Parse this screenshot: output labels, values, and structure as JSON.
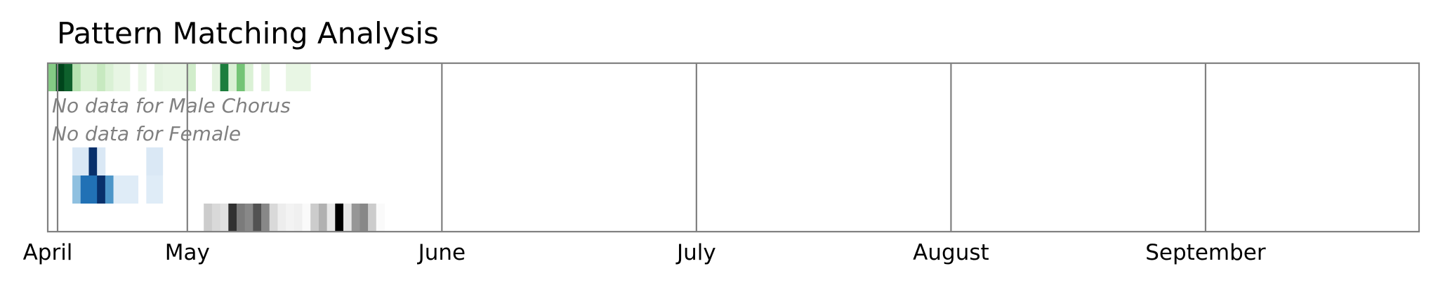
{
  "chart_data": {
    "type": "heatmap",
    "title": "Pattern Matching Analysis",
    "xlabel": "",
    "ylabel": "",
    "x_axis": {
      "type": "date",
      "range": [
        "2023-03-31",
        "2023-09-14"
      ],
      "ticks": [
        {
          "date": "2023-03-31",
          "label": "April"
        },
        {
          "date": "2023-04-17",
          "label": "May"
        },
        {
          "date": "2023-05-18",
          "label": "June"
        },
        {
          "date": "2023-06-18",
          "label": "July"
        },
        {
          "date": "2023-07-19",
          "label": "August"
        },
        {
          "date": "2023-08-19",
          "label": "September"
        }
      ]
    },
    "grid": "vertical lines at month ticks",
    "rows": [
      {
        "name": "",
        "colormap": "Greens",
        "points": [
          {
            "date": "2023-03-31",
            "value": 0.45
          },
          {
            "date": "2023-04-01",
            "value": 1.0
          },
          {
            "date": "2023-04-02",
            "value": 0.9
          },
          {
            "date": "2023-04-03",
            "value": 0.3
          },
          {
            "date": "2023-04-04",
            "value": 0.15
          },
          {
            "date": "2023-04-05",
            "value": 0.15
          },
          {
            "date": "2023-04-06",
            "value": 0.25
          },
          {
            "date": "2023-04-07",
            "value": 0.15
          },
          {
            "date": "2023-04-08",
            "value": 0.08
          },
          {
            "date": "2023-04-09",
            "value": 0.08
          },
          {
            "date": "2023-04-11",
            "value": 0.06
          },
          {
            "date": "2023-04-13",
            "value": 0.1
          },
          {
            "date": "2023-04-14",
            "value": 0.08
          },
          {
            "date": "2023-04-15",
            "value": 0.08
          },
          {
            "date": "2023-04-16",
            "value": 0.08
          },
          {
            "date": "2023-04-17",
            "value": 0.2
          },
          {
            "date": "2023-04-20",
            "value": 0.1
          },
          {
            "date": "2023-04-21",
            "value": 0.8
          },
          {
            "date": "2023-04-22",
            "value": 0.15
          },
          {
            "date": "2023-04-23",
            "value": 0.5
          },
          {
            "date": "2023-04-24",
            "value": 0.15
          },
          {
            "date": "2023-04-26",
            "value": 0.1
          },
          {
            "date": "2023-04-29",
            "value": 0.08
          },
          {
            "date": "2023-04-30",
            "value": 0.08
          },
          {
            "date": "2023-05-01",
            "value": 0.08
          }
        ]
      },
      {
        "name": "Male Chorus",
        "colormap": "Blues",
        "points": [],
        "annotation": "No data for Male Chorus"
      },
      {
        "name": "Female",
        "colormap": "Blues",
        "points": [],
        "annotation": "No data for Female"
      },
      {
        "name": "",
        "colormap": "Blues",
        "points": [
          {
            "date": "2023-04-03",
            "value": 0.15
          },
          {
            "date": "2023-04-04",
            "value": 0.15
          },
          {
            "date": "2023-04-05",
            "value": 1.0
          },
          {
            "date": "2023-04-06",
            "value": 0.15
          },
          {
            "date": "2023-04-12",
            "value": 0.15
          },
          {
            "date": "2023-04-13",
            "value": 0.15
          }
        ]
      },
      {
        "name": "",
        "colormap": "Blues",
        "points": [
          {
            "date": "2023-04-03",
            "value": 0.4
          },
          {
            "date": "2023-04-04",
            "value": 0.75
          },
          {
            "date": "2023-04-05",
            "value": 0.75
          },
          {
            "date": "2023-04-06",
            "value": 1.0
          },
          {
            "date": "2023-04-07",
            "value": 0.6
          },
          {
            "date": "2023-04-08",
            "value": 0.12
          },
          {
            "date": "2023-04-09",
            "value": 0.12
          },
          {
            "date": "2023-04-10",
            "value": 0.12
          },
          {
            "date": "2023-04-12",
            "value": 0.12
          },
          {
            "date": "2023-04-13",
            "value": 0.12
          }
        ]
      },
      {
        "name": "",
        "colormap": "Greys",
        "points": [
          {
            "date": "2023-04-19",
            "value": 0.3
          },
          {
            "date": "2023-04-20",
            "value": 0.25
          },
          {
            "date": "2023-04-21",
            "value": 0.2
          },
          {
            "date": "2023-04-22",
            "value": 0.85
          },
          {
            "date": "2023-04-23",
            "value": 0.6
          },
          {
            "date": "2023-04-24",
            "value": 0.55
          },
          {
            "date": "2023-04-25",
            "value": 0.75
          },
          {
            "date": "2023-04-26",
            "value": 0.55
          },
          {
            "date": "2023-04-27",
            "value": 0.25
          },
          {
            "date": "2023-04-28",
            "value": 0.12
          },
          {
            "date": "2023-04-29",
            "value": 0.08
          },
          {
            "date": "2023-04-30",
            "value": 0.1
          },
          {
            "date": "2023-05-01",
            "value": 0.03
          },
          {
            "date": "2023-05-02",
            "value": 0.3
          },
          {
            "date": "2023-05-03",
            "value": 0.4
          },
          {
            "date": "2023-05-04",
            "value": 0.15
          },
          {
            "date": "2023-05-05",
            "value": 1.0
          },
          {
            "date": "2023-05-06",
            "value": 0.15
          },
          {
            "date": "2023-05-07",
            "value": 0.5
          },
          {
            "date": "2023-05-08",
            "value": 0.55
          },
          {
            "date": "2023-05-09",
            "value": 0.3
          },
          {
            "date": "2023-05-10",
            "value": 0.03
          }
        ]
      }
    ]
  },
  "colors": {
    "frame": "#808080",
    "grid": "#808080",
    "annotation": "#808080",
    "background": "#ffffff"
  }
}
